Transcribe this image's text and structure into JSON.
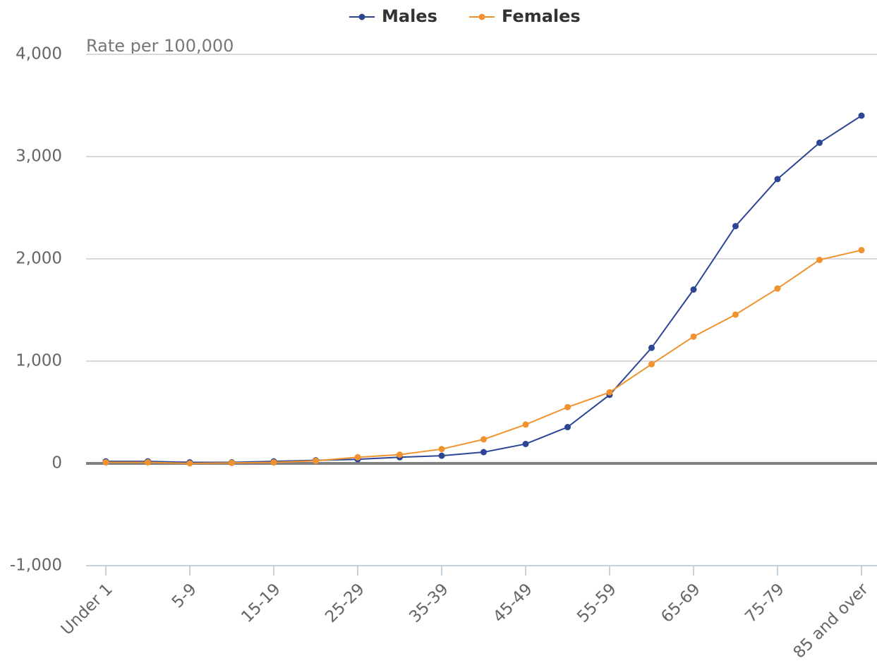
{
  "chart_data": {
    "type": "line",
    "y_axis_title": "Rate per 100,000",
    "categories": [
      "Under 1",
      null,
      "5-9",
      null,
      "15-19",
      null,
      "25-29",
      null,
      "35-39",
      null,
      "45-49",
      null,
      "55-59",
      null,
      "65-69",
      null,
      "75-79",
      null,
      "85 and over"
    ],
    "series": [
      {
        "name": "Males",
        "color": "#2d4595",
        "values": [
          20,
          20,
          10,
          10,
          20,
          30,
          40,
          60,
          75,
          110,
          190,
          355,
          670,
          1130,
          1700,
          2320,
          2780,
          3135,
          3400
        ]
      },
      {
        "name": "Females",
        "color": "#f0922e",
        "values": [
          10,
          10,
          0,
          5,
          10,
          25,
          60,
          85,
          140,
          235,
          380,
          550,
          695,
          970,
          1240,
          1455,
          1710,
          1990,
          2085
        ]
      }
    ],
    "ylim": [
      -1000,
      4000
    ],
    "yticks": [
      {
        "value": -1000,
        "label": "-1,000"
      },
      0,
      {
        "value": 1000,
        "label": "1,000"
      },
      {
        "value": 2000,
        "label": "2,000"
      },
      {
        "value": 3000,
        "label": "3,000"
      },
      {
        "value": 4000,
        "label": "4,000"
      }
    ],
    "grid": true,
    "legend": "top"
  }
}
